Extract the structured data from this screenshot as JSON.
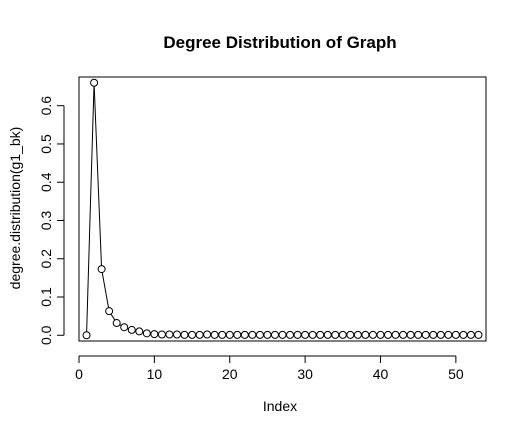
{
  "chart_data": {
    "type": "line",
    "title": "Degree Distribution of Graph",
    "xlabel": "Index",
    "ylabel": "degree.distribution(g1_bk)",
    "xlim": [
      0,
      54
    ],
    "ylim": [
      -0.015,
      0.675
    ],
    "x_ticks": [
      0,
      10,
      20,
      30,
      40,
      50
    ],
    "y_ticks": [
      0.0,
      0.1,
      0.2,
      0.3,
      0.4,
      0.5,
      0.6
    ],
    "x_tick_labels": [
      "0",
      "10",
      "20",
      "30",
      "40",
      "50"
    ],
    "y_tick_labels": [
      "0.0",
      "0.1",
      "0.2",
      "0.3",
      "0.4",
      "0.5",
      "0.6"
    ],
    "grid": false,
    "marker": "open-circle",
    "line_color": "#000000",
    "series": [
      {
        "x": [
          1,
          2,
          3,
          4,
          5,
          6,
          7,
          8,
          9,
          10,
          11,
          12,
          13,
          14,
          15,
          16,
          17,
          18,
          19,
          20,
          21,
          22,
          23,
          24,
          25,
          26,
          27,
          28,
          29,
          30,
          31,
          32,
          33,
          34,
          35,
          36,
          37,
          38,
          39,
          40,
          41,
          42,
          43,
          44,
          45,
          46,
          47,
          48,
          49,
          50,
          51,
          52,
          53
        ],
        "values": [
          0.0,
          0.66,
          0.173,
          0.063,
          0.032,
          0.021,
          0.014,
          0.01,
          0.005,
          0.003,
          0.002,
          0.002,
          0.002,
          0.001,
          0.001,
          0.001,
          0.002,
          0.001,
          0.001,
          0.001,
          0.001,
          0.001,
          0.001,
          0.001,
          0.001,
          0.001,
          0.001,
          0.001,
          0.001,
          0.001,
          0.001,
          0.001,
          0.001,
          0.001,
          0.001,
          0.001,
          0.001,
          0.001,
          0.001,
          0.001,
          0.001,
          0.001,
          0.001,
          0.001,
          0.001,
          0.001,
          0.001,
          0.001,
          0.001,
          0.001,
          0.001,
          0.001,
          0.001
        ]
      }
    ]
  }
}
